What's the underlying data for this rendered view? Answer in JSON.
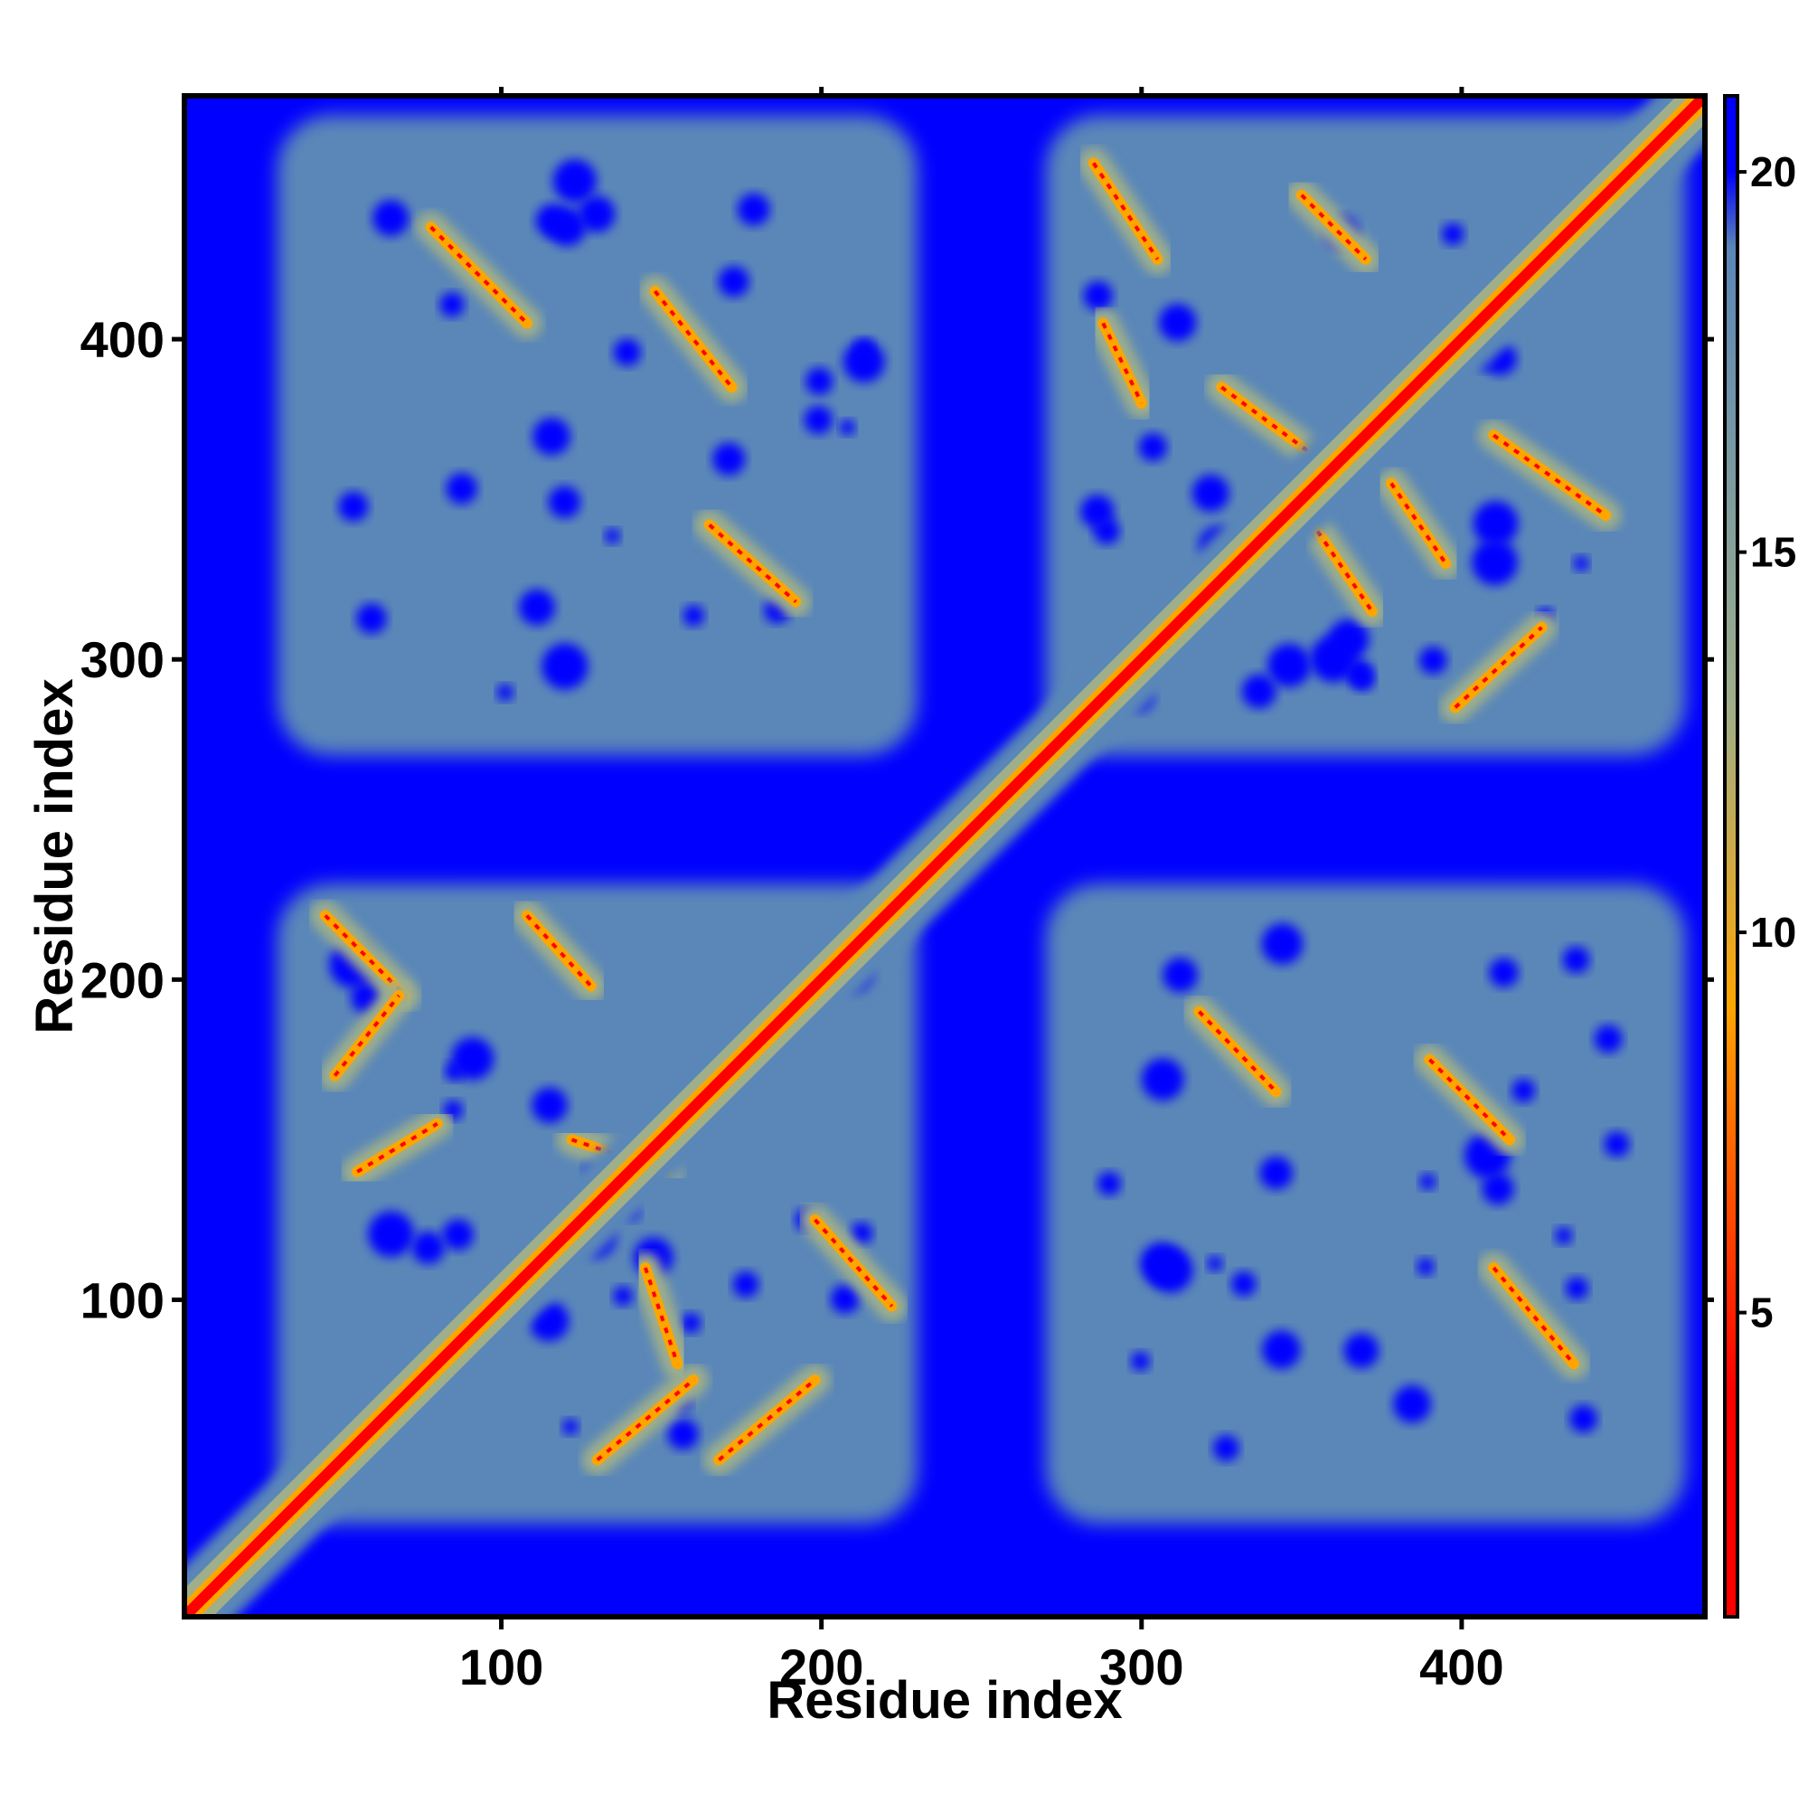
{
  "chart_data": {
    "type": "heatmap",
    "title": "",
    "xlabel": "Residue index",
    "ylabel": "Residue index",
    "xlim": [
      1,
      476
    ],
    "ylim": [
      1,
      476
    ],
    "x_ticks": [
      100,
      200,
      300,
      400
    ],
    "y_ticks": [
      100,
      200,
      300,
      400
    ],
    "colorbar": {
      "range": [
        1,
        21
      ],
      "ticks": [
        5,
        10,
        15,
        20
      ],
      "colors": {
        "low": "#ff0000",
        "mid_low": "#ff8000",
        "mid": "#ffa500",
        "mid_high": "#9faf8a",
        "high": "#5a87b8",
        "max": "#0000ff"
      },
      "stops": [
        1,
        4,
        8,
        9,
        13,
        19,
        20
      ]
    },
    "background_color": "#0000ff",
    "contact_color": "#5a87b8",
    "diagonal_color": "#ff0000",
    "domains": [
      {
        "from": 30,
        "to": 230
      },
      {
        "from": 270,
        "to": 470
      }
    ],
    "contact_blocks": [
      {
        "x": [
          30,
          230
        ],
        "y": [
          30,
          230
        ]
      },
      {
        "x": [
          270,
          470
        ],
        "y": [
          270,
          470
        ]
      },
      {
        "x": [
          30,
          230
        ],
        "y": [
          270,
          470
        ]
      },
      {
        "x": [
          270,
          470
        ],
        "y": [
          30,
          230
        ]
      }
    ],
    "contact_lines": [
      {
        "x": [
          78,
          108
        ],
        "y": [
          435,
          405
        ]
      },
      {
        "x": [
          148,
          172
        ],
        "y": [
          415,
          385
        ]
      },
      {
        "x": [
          165,
          192
        ],
        "y": [
          342,
          318
        ]
      },
      {
        "x": [
          45,
          70
        ],
        "y": [
          220,
          195
        ]
      },
      {
        "x": [
          48,
          68
        ],
        "y": [
          170,
          195
        ]
      },
      {
        "x": [
          108,
          128
        ],
        "y": [
          220,
          198
        ]
      },
      {
        "x": [
          198,
          222
        ],
        "y": [
          125,
          98
        ]
      },
      {
        "x": [
          168,
          198
        ],
        "y": [
          50,
          75
        ]
      },
      {
        "x": [
          130,
          160
        ],
        "y": [
          50,
          75
        ]
      },
      {
        "x": [
          55,
          80
        ],
        "y": [
          140,
          155
        ]
      },
      {
        "x": [
          122,
          152
        ],
        "y": [
          150,
          140
        ]
      },
      {
        "x": [
          145,
          155
        ],
        "y": [
          110,
          80
        ]
      },
      {
        "x": [
          285,
          305
        ],
        "y": [
          455,
          425
        ]
      },
      {
        "x": [
          288,
          300
        ],
        "y": [
          405,
          380
        ]
      },
      {
        "x": [
          350,
          370
        ],
        "y": [
          445,
          425
        ]
      },
      {
        "x": [
          325,
          352
        ],
        "y": [
          385,
          365
        ]
      },
      {
        "x": [
          355,
          372
        ],
        "y": [
          340,
          315
        ]
      },
      {
        "x": [
          378,
          395
        ],
        "y": [
          355,
          330
        ]
      },
      {
        "x": [
          398,
          425
        ],
        "y": [
          285,
          310
        ]
      },
      {
        "x": [
          410,
          445
        ],
        "y": [
          370,
          345
        ]
      },
      {
        "x": [
          318,
          342
        ],
        "y": [
          190,
          165
        ]
      },
      {
        "x": [
          390,
          415
        ],
        "y": [
          175,
          150
        ]
      },
      {
        "x": [
          410,
          435
        ],
        "y": [
          110,
          80
        ]
      }
    ]
  }
}
